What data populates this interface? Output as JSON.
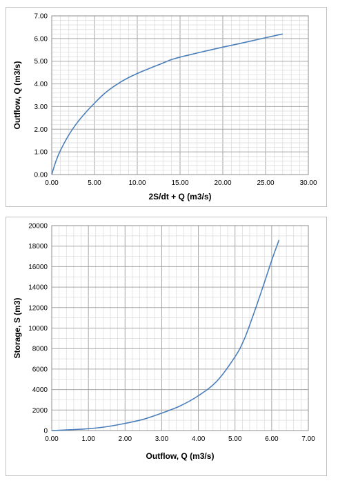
{
  "chart_data": [
    {
      "type": "line",
      "xlabel": "2S/dt + Q (m3/s)",
      "ylabel": "Outflow, Q (m3/s)",
      "xlim": [
        0,
        30
      ],
      "ylim": [
        0,
        7
      ],
      "x_ticks": [
        "0.00",
        "5.00",
        "10.00",
        "15.00",
        "20.00",
        "25.00",
        "30.00"
      ],
      "y_ticks": [
        "0.00",
        "1.00",
        "2.00",
        "3.00",
        "4.00",
        "5.00",
        "6.00",
        "7.00"
      ],
      "grid": true,
      "series": [
        {
          "x": [
            0,
            0.5,
            1,
            2,
            3,
            4,
            5,
            6,
            7,
            8,
            9,
            10,
            11,
            12,
            13,
            14,
            15,
            16,
            18,
            20,
            22,
            24,
            26,
            27
          ],
          "values": [
            0,
            0.6,
            1.05,
            1.75,
            2.3,
            2.75,
            3.15,
            3.52,
            3.82,
            4.07,
            4.28,
            4.46,
            4.62,
            4.77,
            4.92,
            5.07,
            5.18,
            5.27,
            5.45,
            5.62,
            5.78,
            5.95,
            6.12,
            6.2
          ]
        }
      ],
      "colors": {
        "line": "#4a7ebb",
        "grid": "#c8c8c8"
      }
    },
    {
      "type": "line",
      "xlabel": "Outflow, Q (m3/s)",
      "ylabel": "Storage, S (m3)",
      "xlim": [
        0,
        7
      ],
      "ylim": [
        0,
        20000
      ],
      "x_ticks": [
        "0.00",
        "1.00",
        "2.00",
        "3.00",
        "4.00",
        "5.00",
        "6.00",
        "7.00"
      ],
      "y_ticks": [
        "0",
        "2000",
        "4000",
        "6000",
        "8000",
        "10000",
        "12000",
        "14000",
        "16000",
        "18000",
        "20000"
      ],
      "grid": true,
      "series": [
        {
          "x": [
            0,
            0.5,
            1,
            1.5,
            2,
            2.5,
            3,
            3.5,
            4,
            4.5,
            5,
            5.25,
            5.5,
            5.75,
            6,
            6.2
          ],
          "values": [
            0,
            80,
            180,
            380,
            700,
            1100,
            1700,
            2400,
            3400,
            4800,
            7200,
            8900,
            11300,
            13900,
            16600,
            18600
          ]
        }
      ],
      "colors": {
        "line": "#4a7ebb",
        "grid": "#c8c8c8"
      }
    }
  ]
}
